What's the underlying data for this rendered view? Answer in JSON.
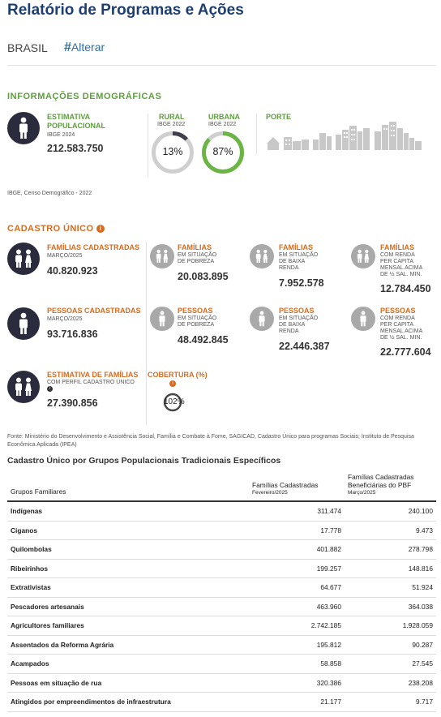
{
  "page": {
    "title": "Relatório de Programas e Ações",
    "location": "BRASIL",
    "change_label": "Alterar"
  },
  "demographics": {
    "heading": "INFORMAÇÕES DEMOGRÁFICAS",
    "population": {
      "label_line1": "ESTIMATIVA",
      "label_line2": "POPULACIONAL",
      "source": "IBGE 2024",
      "value": "212.583.750"
    },
    "rural": {
      "label": "RURAL",
      "source": "IBGE 2022",
      "percent_text": "13%",
      "percent": 13,
      "color": "#cfcfcf",
      "fill": "#3f3f4d"
    },
    "urban": {
      "label": "URBANA",
      "source": "IBGE 2022",
      "percent_text": "87%",
      "percent": 87,
      "color": "#cfcfcf",
      "fill": "#6bb545"
    },
    "size": {
      "label": "PORTE"
    },
    "source_note": "IBGE, Censo Demográfico - 2022"
  },
  "cadastro": {
    "heading": "CADASTRO ÚNICO",
    "familias": {
      "label": "FAMÍLIAS CADASTRADAS",
      "date": "MARÇO/2025",
      "value": "40.820.923",
      "pobreza": {
        "label": "FAMÍLIAS",
        "sub1": "EM SITUAÇÃO",
        "sub2": "DE POBREZA",
        "value": "20.083.895"
      },
      "baixa": {
        "label": "FAMÍLIAS",
        "sub1": "EM SITUAÇÃO",
        "sub2": "DE BAIXA",
        "sub3": "RENDA",
        "value": "7.952.578"
      },
      "acima": {
        "label": "FAMÍLIAS",
        "sub1": "COM RENDA",
        "sub2": "PER CAPITA",
        "sub3": "MENSAL ACIMA",
        "sub4": "DE ½ SAL. MIN.",
        "value": "12.784.450"
      }
    },
    "pessoas": {
      "label": "PESSOAS CADASTRADAS",
      "date": "MARÇO/2025",
      "value": "93.716.836",
      "pobreza": {
        "label": "PESSOAS",
        "sub1": "EM SITUAÇÃO",
        "sub2": "DE POBREZA",
        "value": "48.492.845"
      },
      "baixa": {
        "label": "PESSOAS",
        "sub1": "EM SITUAÇÃO",
        "sub2": "DE BAIXA",
        "sub3": "RENDA",
        "value": "22.446.387"
      },
      "acima": {
        "label": "PESSOAS",
        "sub1": "COM RENDA",
        "sub2": "PER CAPITA",
        "sub3": "MENSAL ACIMA",
        "sub4": "DE ½ SAL. MIN.",
        "value": "22.777.604"
      }
    },
    "estimativa": {
      "label": "ESTIMATIVA DE FAMÍLIAS",
      "sub": "COM PERFIL CADASTRO ÚNICO",
      "value": "27.390.856"
    },
    "cobertura": {
      "label": "COBERTURA (%)",
      "value": "102"
    },
    "source_note": "Fonte: Ministério do Desenvolvimento e Assistência Social, Família e Combate à Fome, SAGICAD, Cadastro Único para programas Sociais; Instituto de Pesquisa Econômica Aplicada (IPEA)"
  },
  "groups": {
    "heading": "Cadastro Único por Grupos Populacionais Tradicionais Específicos",
    "col1": "Grupos Familiares",
    "col2": "Famílias Cadastradas",
    "col2_sub": "Fevereiro/2025",
    "col3_line1": "Famílias Cadastradas",
    "col3_line2": "Beneficiárias do PBF",
    "col3_sub": "Março/2025",
    "rows": [
      {
        "name": "Indígenas",
        "cad": "311.474",
        "pbf": "240.100"
      },
      {
        "name": "Ciganos",
        "cad": "17.778",
        "pbf": "9.473"
      },
      {
        "name": "Quilombolas",
        "cad": "401.882",
        "pbf": "278.798"
      },
      {
        "name": "Ribeirinhos",
        "cad": "199.257",
        "pbf": "148.816"
      },
      {
        "name": "Extrativistas",
        "cad": "64.677",
        "pbf": "51.924"
      },
      {
        "name": "Pescadores artesanais",
        "cad": "463.960",
        "pbf": "364.038"
      },
      {
        "name": "Agricultores familiares",
        "cad": "2.742.185",
        "pbf": "1.928.059"
      },
      {
        "name": "Assentados da Reforma Agrária",
        "cad": "195.812",
        "pbf": "90.287"
      },
      {
        "name": "Acampados",
        "cad": "58.858",
        "pbf": "27.545"
      },
      {
        "name": "Pessoas em situação de rua",
        "cad": "320.386",
        "pbf": "238.208"
      },
      {
        "name": "Atingidos por empreendimentos de infraestrutura",
        "cad": "21.177",
        "pbf": "9.717"
      }
    ]
  }
}
